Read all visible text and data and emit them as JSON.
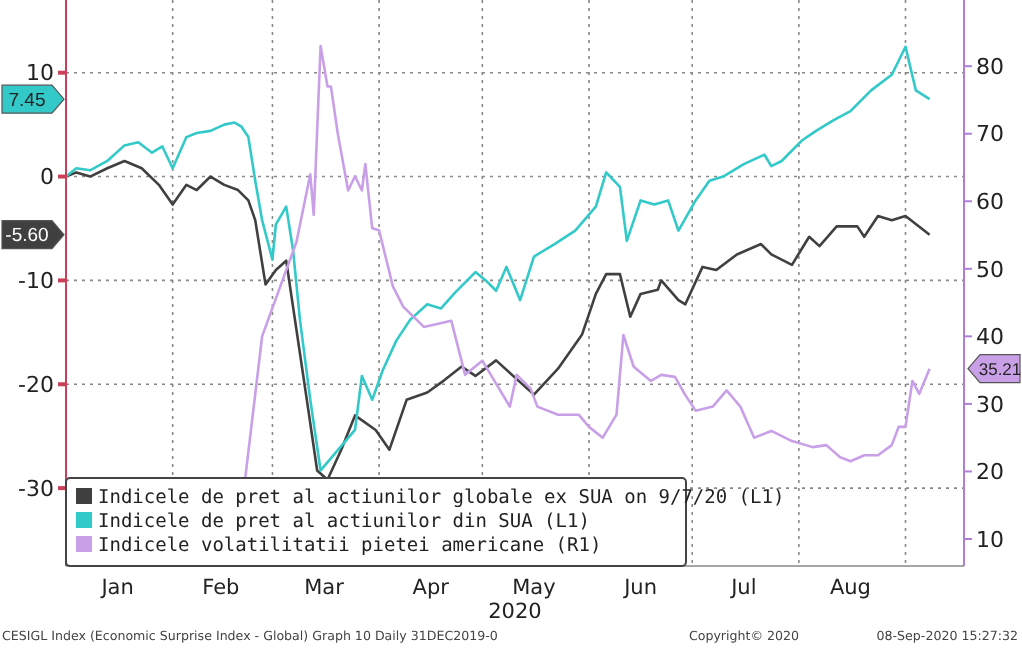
{
  "chart_data": {
    "type": "line",
    "xlabel": "2020",
    "xlim": [
      "2020-01-01",
      "2020-09-18"
    ],
    "xticks": [
      {
        "value": "2020-02-01",
        "label": null
      },
      {
        "value": "2020-03-01",
        "label": null
      },
      {
        "value": "2020-04-01",
        "label": null
      },
      {
        "value": "2020-05-01",
        "label": null
      },
      {
        "value": "2020-06-01",
        "label": null
      },
      {
        "value": "2020-07-01",
        "label": null
      },
      {
        "value": "2020-08-01",
        "label": null
      },
      {
        "value": "2020-09-01",
        "label": null
      },
      {
        "value": "2020-01-16",
        "label": "Jan"
      },
      {
        "value": "2020-02-15",
        "label": "Feb"
      },
      {
        "value": "2020-03-16",
        "label": "Mar"
      },
      {
        "value": "2020-04-16",
        "label": "Apr"
      },
      {
        "value": "2020-05-16",
        "label": "May"
      },
      {
        "value": "2020-06-16",
        "label": "Jun"
      },
      {
        "value": "2020-07-16",
        "label": "Jul"
      },
      {
        "value": "2020-08-16",
        "label": "Aug"
      }
    ],
    "ylim": [
      -37.5,
      17
    ],
    "yticks": [
      -30,
      -20,
      -10,
      0,
      10,
      {
        "value": 7.45,
        "label": "7.45"
      },
      {
        "value": -5.6,
        "label": "-5.60"
      }
    ],
    "y2lim": [
      6,
      89.8
    ],
    "y2ticks": [
      10,
      20,
      30,
      40,
      50,
      60,
      70,
      80,
      {
        "value": 35.21,
        "label": "35.21"
      }
    ],
    "grid": true,
    "legend": "bottom left",
    "line_style": "solid",
    "marker": "none",
    "annotations": [
      "CESIGL Index (Economic Surprise Index - Global) Graph 10  Daily 31DEC2019-0",
      "Copyright© 2020",
      "08-Sep-2020 15:27:32"
    ],
    "series": [
      {
        "name": "Indicele de pret al actiunilor globale ex SUA on 9/7/20 (L1)",
        "color": "#404040",
        "x": [
          "2020-01-01",
          "2020-01-04",
          "2020-01-08",
          "2020-01-13",
          "2020-01-18",
          "2020-01-23",
          "2020-01-28",
          "2020-02-01",
          "2020-02-05",
          "2020-02-08",
          "2020-02-12",
          "2020-02-16",
          "2020-02-20",
          "2020-02-23",
          "2020-02-25",
          "2020-02-28",
          "2020-03-02",
          "2020-03-05",
          "2020-03-08",
          "2020-03-11",
          "2020-03-14",
          "2020-03-17",
          "2020-03-21",
          "2020-03-25",
          "2020-03-31",
          "2020-04-04",
          "2020-04-09",
          "2020-04-15",
          "2020-04-20",
          "2020-04-25",
          "2020-04-29",
          "2020-05-05",
          "2020-05-16",
          "2020-05-23",
          "2020-05-30",
          "2020-06-03",
          "2020-06-06",
          "2020-06-10",
          "2020-06-13",
          "2020-06-16",
          "2020-06-21",
          "2020-06-22",
          "2020-06-27",
          "2020-06-29",
          "2020-07-04",
          "2020-07-08",
          "2020-07-14",
          "2020-07-21",
          "2020-07-24",
          "2020-07-30",
          "2020-08-04",
          "2020-08-07",
          "2020-08-12",
          "2020-08-18",
          "2020-08-20",
          "2020-08-24",
          "2020-08-28",
          "2020-09-01",
          "2020-09-08"
        ],
        "values": [
          0,
          0.4,
          0,
          0.8,
          1.5,
          0.8,
          -0.8,
          -2.7,
          -0.8,
          -1.3,
          0,
          -0.8,
          -1.3,
          -2.3,
          -4.2,
          -10.4,
          -9,
          -8.1,
          -14.8,
          -21.5,
          -28.3,
          -29.2,
          -26.3,
          -23,
          -24.4,
          -26.3,
          -21.5,
          -20.8,
          -19.6,
          -18.3,
          -19.2,
          -17.7,
          -21,
          -18.5,
          -15.2,
          -11.3,
          -9.4,
          -9.4,
          -13.5,
          -11.3,
          -10.9,
          -10,
          -11.9,
          -12.3,
          -8.7,
          -9,
          -7.5,
          -6.5,
          -7.5,
          -8.5,
          -5.8,
          -6.7,
          -4.8,
          -4.8,
          -5.8,
          -3.8,
          -4.2,
          -3.8,
          -5.6
        ]
      },
      {
        "name": "Indicele de pret al actiunilor din SUA (L1)",
        "color": "#33c9c9",
        "x": [
          "2020-01-01",
          "2020-01-04",
          "2020-01-08",
          "2020-01-13",
          "2020-01-18",
          "2020-01-22",
          "2020-01-26",
          "2020-01-29",
          "2020-02-01",
          "2020-02-05",
          "2020-02-08",
          "2020-02-12",
          "2020-02-16",
          "2020-02-19",
          "2020-02-21",
          "2020-02-23",
          "2020-02-25",
          "2020-02-27",
          "2020-03-01",
          "2020-03-02",
          "2020-03-05",
          "2020-03-07",
          "2020-03-09",
          "2020-03-12",
          "2020-03-15",
          "2020-03-19",
          "2020-03-23",
          "2020-03-25",
          "2020-03-27",
          "2020-03-30",
          "2020-04-02",
          "2020-04-06",
          "2020-04-10",
          "2020-04-15",
          "2020-04-19",
          "2020-04-23",
          "2020-04-29",
          "2020-05-02",
          "2020-05-05",
          "2020-05-08",
          "2020-05-12",
          "2020-05-16",
          "2020-05-22",
          "2020-05-28",
          "2020-06-03",
          "2020-06-06",
          "2020-06-10",
          "2020-06-12",
          "2020-06-16",
          "2020-06-20",
          "2020-06-24",
          "2020-06-27",
          "2020-07-02",
          "2020-07-06",
          "2020-07-10",
          "2020-07-16",
          "2020-07-22",
          "2020-07-24",
          "2020-07-27",
          "2020-08-02",
          "2020-08-06",
          "2020-08-11",
          "2020-08-16",
          "2020-08-22",
          "2020-08-28",
          "2020-09-01",
          "2020-09-04",
          "2020-09-08"
        ],
        "values": [
          0,
          0.8,
          0.6,
          1.5,
          3,
          3.3,
          2.3,
          2.9,
          0.8,
          3.8,
          4.2,
          4.4,
          5,
          5.2,
          4.8,
          3.8,
          -0.4,
          -4.2,
          -8,
          -4.6,
          -2.9,
          -7.1,
          -13.8,
          -21.5,
          -28.3,
          null,
          null,
          -24.4,
          -19.2,
          -21.5,
          -18.7,
          -15.8,
          -13.8,
          -12.3,
          -12.7,
          -11.2,
          -9.2,
          -10,
          -11,
          -8.7,
          -11.9,
          -7.7,
          -6.5,
          -5.2,
          -2.9,
          0.4,
          -1,
          -6.2,
          -2.3,
          -2.7,
          -2.3,
          -5.2,
          -2.3,
          -0.4,
          0,
          1.2,
          2.1,
          1,
          1.5,
          3.5,
          4.4,
          5.4,
          6.3,
          8.3,
          9.8,
          12.5,
          8.3,
          7.45
        ]
      },
      {
        "name": "Indicele volatilitatii pietei americane (R1)",
        "color": "#c9a0e8",
        "axis": "y2",
        "x": [
          "2020-02-22",
          "2020-02-27",
          "2020-03-08",
          "2020-03-12",
          "2020-03-13",
          "2020-03-15",
          "2020-03-17",
          "2020-03-18",
          "2020-03-20",
          "2020-03-23",
          "2020-03-25",
          "2020-03-27",
          "2020-03-28",
          "2020-03-30",
          "2020-04-01",
          "2020-04-05",
          "2020-04-08",
          "2020-04-14",
          "2020-04-22",
          "2020-04-26",
          "2020-05-01",
          "2020-05-09",
          "2020-05-11",
          "2020-05-15",
          "2020-05-17",
          "2020-05-23",
          "2020-05-29",
          "2020-06-01",
          "2020-06-05",
          "2020-06-09",
          "2020-06-11",
          "2020-06-14",
          "2020-06-19",
          "2020-06-22",
          "2020-06-26",
          "2020-06-29",
          "2020-07-02",
          "2020-07-07",
          "2020-07-11",
          "2020-07-15",
          "2020-07-19",
          "2020-07-24",
          "2020-07-30",
          "2020-08-05",
          "2020-08-09",
          "2020-08-13",
          "2020-08-16",
          "2020-08-20",
          "2020-08-24",
          "2020-08-28",
          "2020-08-30",
          "2020-09-01",
          "2020-09-03",
          "2020-09-05",
          "2020-09-08"
        ],
        "values": [
          18.6,
          40,
          54,
          64,
          58,
          83,
          77,
          77,
          70,
          61.6,
          63.7,
          61.6,
          65.5,
          56,
          55.7,
          47.4,
          44.4,
          41.4,
          42.3,
          34.3,
          36.4,
          29.6,
          34.3,
          32.3,
          29.6,
          28.4,
          28.4,
          26.6,
          25,
          28.4,
          40.2,
          35.5,
          33.4,
          34.3,
          34,
          31.3,
          29,
          29.6,
          32,
          29.6,
          25,
          26,
          24.5,
          23.6,
          23.9,
          22.1,
          21.5,
          22.4,
          22.4,
          23.9,
          26.6,
          26.6,
          33.4,
          31.5,
          35.21
        ]
      }
    ]
  }
}
